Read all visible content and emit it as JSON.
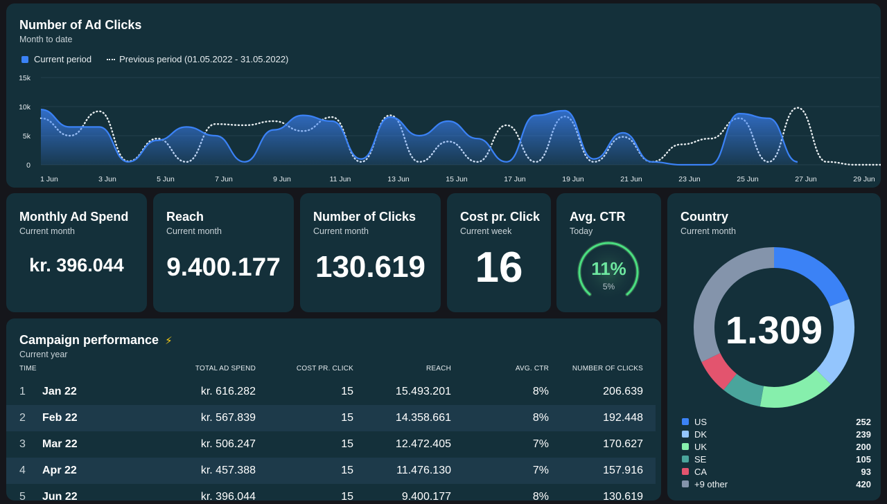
{
  "ad_clicks": {
    "title": "Number of Ad Clicks",
    "subtitle": "Month to date",
    "legend_current": "Current period",
    "legend_previous": "Previous period (01.05.2022 - 31.05.2022)",
    "colors": {
      "current": "#3b82f6",
      "previous": "#e6ecef"
    }
  },
  "chart_data": {
    "type": "area",
    "ylim": [
      0,
      15000
    ],
    "yticks": [
      "0",
      "5k",
      "10k",
      "15k"
    ],
    "yticks_values": [
      0,
      5000,
      10000,
      15000
    ],
    "x_tick_labels": [
      "1 Jun",
      "3 Jun",
      "5 Jun",
      "7 Jun",
      "9 Jun",
      "11 Jun",
      "13 Jun",
      "15 Jun",
      "17 Jun",
      "19 Jun",
      "21 Jun",
      "23 Jun",
      "25 Jun",
      "27 Jun",
      "29 Jun"
    ],
    "x": [
      1,
      2,
      3,
      4,
      5,
      6,
      7,
      8,
      9,
      10,
      11,
      12,
      13,
      14,
      15,
      16,
      17,
      18,
      19,
      20,
      21,
      22,
      23,
      24,
      25,
      26,
      27,
      28,
      29,
      30
    ],
    "series": [
      {
        "name": "Current period",
        "values": [
          9500,
          6500,
          6500,
          500,
          4200,
          6500,
          5000,
          500,
          6000,
          8500,
          7500,
          1000,
          8200,
          5000,
          7500,
          4500,
          500,
          8500,
          9300,
          1000,
          5500,
          500,
          0,
          0,
          8800,
          8000,
          500,
          null,
          null,
          null
        ]
      },
      {
        "name": "Previous period (01.05.2022 - 31.05.2022)",
        "values": [
          8000,
          5000,
          9200,
          600,
          4500,
          500,
          7000,
          6800,
          7500,
          5800,
          8200,
          500,
          8500,
          500,
          4000,
          500,
          6800,
          500,
          8300,
          500,
          4800,
          500,
          3500,
          4500,
          8000,
          500,
          9800,
          500,
          0,
          0
        ]
      }
    ]
  },
  "kpis": {
    "spend": {
      "title": "Monthly Ad Spend",
      "subtitle": "Current month",
      "value": "kr. 396.044"
    },
    "reach": {
      "title": "Reach",
      "subtitle": "Current month",
      "value": "9.400.177"
    },
    "clicks": {
      "title": "Number of Clicks",
      "subtitle": "Current month",
      "value": "130.619"
    },
    "cpc": {
      "title": "Cost pr. Click",
      "subtitle": "Current week",
      "value": "16"
    },
    "ctr": {
      "title": "Avg. CTR",
      "subtitle": "Today",
      "value": "11%",
      "previous": "5%",
      "gauge_level": 1.0,
      "gauge_color": "#4ade80"
    }
  },
  "country": {
    "title": "Country",
    "subtitle": "Current month",
    "total": "1.309",
    "items": [
      {
        "name": "US",
        "value": "252",
        "color": "#3b82f6"
      },
      {
        "name": "DK",
        "value": "239",
        "color": "#93c5fd"
      },
      {
        "name": "UK",
        "value": "200",
        "color": "#86efac"
      },
      {
        "name": "SE",
        "value": "105",
        "color": "#4aa59c"
      },
      {
        "name": "CA",
        "value": "93",
        "color": "#e3546e"
      },
      {
        "name": "+9 other",
        "value": "420",
        "color": "#8494ab"
      }
    ]
  },
  "campaign": {
    "title": "Campaign performance",
    "icon": "lightning-icon",
    "subtitle": "Current year",
    "columns": [
      "TIME",
      "TOTAL AD SPEND",
      "COST PR. CLICK",
      "REACH",
      "AVG. CTR",
      "NUMBER OF CLICKS"
    ],
    "rows": [
      {
        "idx": "1",
        "time": "Jan 22",
        "spend": "kr. 616.282",
        "cpc": "15",
        "reach": "15.493.201",
        "ctr": "8%",
        "clicks": "206.639"
      },
      {
        "idx": "2",
        "time": "Feb 22",
        "spend": "kr. 567.839",
        "cpc": "15",
        "reach": "14.358.661",
        "ctr": "8%",
        "clicks": "192.448"
      },
      {
        "idx": "3",
        "time": "Mar 22",
        "spend": "kr. 506.247",
        "cpc": "15",
        "reach": "12.472.405",
        "ctr": "7%",
        "clicks": "170.627"
      },
      {
        "idx": "4",
        "time": "Apr 22",
        "spend": "kr. 457.388",
        "cpc": "15",
        "reach": "11.476.130",
        "ctr": "7%",
        "clicks": "157.916"
      },
      {
        "idx": "5",
        "time": "Jun 22",
        "spend": "kr. 396.044",
        "cpc": "15",
        "reach": "9.400.177",
        "ctr": "8%",
        "clicks": "130.619"
      }
    ]
  }
}
